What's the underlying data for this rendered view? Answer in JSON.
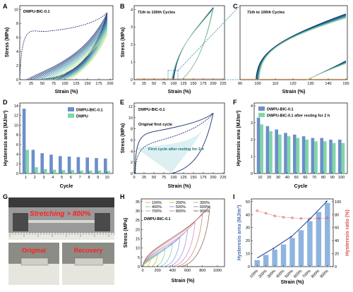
{
  "panels": {
    "A": {
      "letter": "A",
      "title": "DWPU-BIC-0.1",
      "xlabel": "Strain (%)",
      "ylabel": "Stress (MPa)",
      "xticks": [
        "0",
        "25",
        "50",
        "75",
        "100",
        "125",
        "150",
        "175",
        "200"
      ],
      "yticks": [
        "0",
        "2",
        "4",
        "6",
        "8",
        "10"
      ]
    },
    "B": {
      "letter": "B",
      "title": "71th to 100th Cycles",
      "xlabel": "Strain (%)",
      "ylabel": "Stress (MPa)",
      "xticks": [
        "0",
        "25",
        "50",
        "75",
        "100",
        "125",
        "150",
        "175",
        "200",
        "225"
      ],
      "yticks": [
        "0",
        "1",
        "2",
        "3",
        "4"
      ]
    },
    "C": {
      "letter": "C",
      "title": "71th to 100th Cycles",
      "xlabel": "Strain (%)",
      "xticks": [
        "90",
        "100",
        "110",
        "120",
        "130",
        "140",
        "150"
      ]
    },
    "D": {
      "letter": "D",
      "xlabel": "Cycle",
      "ylabel": "Hysteresis area (MJ/m³)",
      "xticks": [
        "1",
        "2",
        "3",
        "4",
        "5",
        "6",
        "7",
        "8",
        "9",
        "10"
      ],
      "yticks": [
        "0",
        "2",
        "4",
        "6",
        "8",
        "10",
        "12",
        "14"
      ],
      "legend": [
        "DWPU-BIC-0.1",
        "DWPU"
      ]
    },
    "E": {
      "letter": "E",
      "title": "DWPU-BIC-0.1",
      "xlabel": "Strain (%)",
      "ylabel": "Stress (MPa)",
      "xticks": [
        "0",
        "25",
        "50",
        "75",
        "100",
        "125",
        "150",
        "175",
        "200",
        "225"
      ],
      "yticks": [
        "0",
        "2",
        "4",
        "6",
        "8",
        "10",
        "12"
      ],
      "ann1": "Original first cycle",
      "ann2": "First cycle after resting for 2 h"
    },
    "F": {
      "letter": "F",
      "xlabel": "Cycle",
      "ylabel": "Hysteresis area (MJ/m³)",
      "xticks": [
        "10",
        "20",
        "30",
        "40",
        "50",
        "60",
        "70",
        "80",
        "90",
        "100"
      ],
      "yticks": [
        "0",
        "1",
        "2",
        "3",
        "4"
      ],
      "legend": [
        "DWPU-BIC-0.1",
        "DWPU-BIC-0.1 after resting for 2 h"
      ]
    },
    "G": {
      "letter": "G",
      "stretch": "Stretching > 800%",
      "original": "Original",
      "recovery": "Recovery"
    },
    "H": {
      "letter": "H",
      "title": "DWPU-BIC-0.1",
      "xlabel": "Strain (%)",
      "ylabel": "Stress (MPa)",
      "xticks": [
        "0",
        "200",
        "400",
        "600",
        "800",
        "1000"
      ],
      "yticks": [
        "0",
        "5",
        "10",
        "15",
        "20",
        "25",
        "30",
        "35"
      ],
      "legend": [
        "100%",
        "200%",
        "300%",
        "400%",
        "500%",
        "600%",
        "700%",
        "800%",
        "900%"
      ]
    },
    "I": {
      "letter": "I",
      "xlabel": "Strain (%)",
      "ylabel": "Hysteresis area (MJ/m³)",
      "y2label": "Hysteresis ratio (%)",
      "xticks": [
        "100%",
        "200%",
        "300%",
        "400%",
        "500%",
        "600%",
        "700%",
        "800%",
        "900%"
      ],
      "yticks": [
        "0",
        "10",
        "20",
        "30",
        "40",
        "50"
      ],
      "y2ticks": [
        "0",
        "20",
        "40",
        "60",
        "80",
        "100"
      ]
    }
  },
  "colors": {
    "blue": "#6b8fc9",
    "green": "#7fd6a8",
    "red": "#e05050",
    "teal": "#4a9aa8",
    "navy": "#1a2f6b"
  },
  "chart_data": [
    {
      "panel": "D",
      "type": "bar",
      "categories": [
        "1",
        "2",
        "3",
        "4",
        "5",
        "6",
        "7",
        "8",
        "9",
        "10"
      ],
      "series": [
        {
          "name": "DWPU-BIC-0.1",
          "values": [
            13.4,
            4.9,
            4.2,
            3.9,
            3.6,
            3.5,
            3.4,
            3.3,
            3.2,
            3.1
          ]
        },
        {
          "name": "DWPU",
          "values": [
            4.9,
            1.3,
            0.9,
            0.8,
            0.7,
            0.7,
            0.6,
            0.6,
            0.6,
            0.5
          ]
        }
      ],
      "ylim": [
        0,
        14
      ]
    },
    {
      "panel": "F",
      "type": "bar",
      "categories": [
        "10",
        "20",
        "30",
        "40",
        "50",
        "60",
        "70",
        "80",
        "90",
        "100"
      ],
      "series": [
        {
          "name": "DWPU-BIC-0.1",
          "values": [
            3.3,
            2.8,
            2.6,
            2.4,
            2.3,
            2.2,
            2.1,
            2.1,
            2.0,
            2.0
          ]
        },
        {
          "name": "DWPU-BIC-0.1 after resting for 2 h",
          "values": [
            2.9,
            2.5,
            2.3,
            2.2,
            2.1,
            2.0,
            1.9,
            1.9,
            1.8,
            1.8
          ]
        }
      ],
      "ylim": [
        0,
        4
      ]
    },
    {
      "panel": "I",
      "type": "bar",
      "categories": [
        "100%",
        "200%",
        "300%",
        "400%",
        "500%",
        "600%",
        "700%",
        "800%",
        "900%"
      ],
      "series": [
        {
          "name": "Hysteresis area",
          "values": [
            5,
            9,
            13,
            17,
            22,
            28,
            35,
            42,
            49
          ]
        },
        {
          "name": "Hysteresis ratio",
          "values": [
            86,
            82,
            78,
            76,
            75,
            74,
            74,
            74,
            75
          ]
        }
      ],
      "ylim": [
        0,
        50
      ],
      "y2lim": [
        0,
        100
      ]
    },
    {
      "panel": "H",
      "type": "line",
      "series": [
        {
          "name": "100%",
          "x": [
            0,
            100
          ],
          "y": [
            0,
            4
          ]
        },
        {
          "name": "200%",
          "x": [
            0,
            200
          ],
          "y": [
            0,
            7
          ]
        },
        {
          "name": "300%",
          "x": [
            0,
            300
          ],
          "y": [
            0,
            10
          ]
        },
        {
          "name": "400%",
          "x": [
            0,
            400
          ],
          "y": [
            0,
            13
          ]
        },
        {
          "name": "500%",
          "x": [
            0,
            500
          ],
          "y": [
            0,
            16
          ]
        },
        {
          "name": "600%",
          "x": [
            0,
            600
          ],
          "y": [
            0,
            20
          ]
        },
        {
          "name": "700%",
          "x": [
            0,
            700
          ],
          "y": [
            0,
            24
          ]
        },
        {
          "name": "800%",
          "x": [
            0,
            800
          ],
          "y": [
            0,
            29
          ]
        },
        {
          "name": "900%",
          "x": [
            0,
            900
          ],
          "y": [
            0,
            33
          ]
        }
      ],
      "xlim": [
        0,
        1000
      ],
      "ylim": [
        0,
        35
      ]
    }
  ]
}
